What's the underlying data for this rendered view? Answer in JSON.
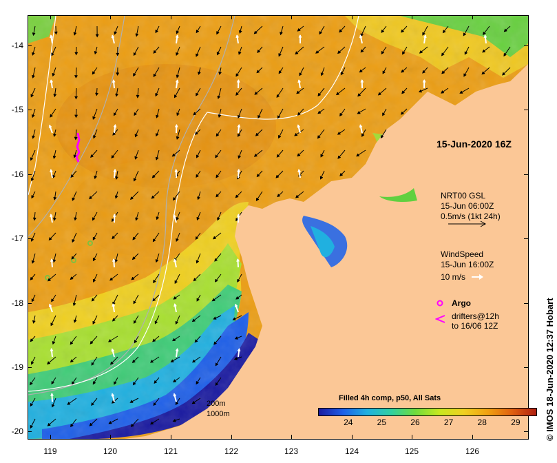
{
  "map": {
    "y_labels": [
      "-14",
      "-15",
      "-16",
      "-17",
      "-18",
      "-19",
      "-20"
    ],
    "x_labels": [
      "119",
      "120",
      "121",
      "122",
      "123",
      "124",
      "125",
      "126"
    ],
    "timestamp": "15-Jun-2020 16Z",
    "credit": "© IMOS 18-Jun-2020 12:37 Hobart"
  },
  "legend": {
    "current": {
      "title": "NRT00 GSL",
      "time": "15-Jun 06:00Z",
      "scale": "0.5m/s (1kt 24h)"
    },
    "wind": {
      "title": "WindSpeed",
      "time": "15-Jun 16:00Z",
      "scale": "10 m/s"
    },
    "argo": {
      "label": "Argo"
    },
    "drifters": {
      "line1": "drifters@12h",
      "line2": "to 16/06 12Z"
    },
    "isobaths": {
      "a": "200m",
      "b": "1000m"
    }
  },
  "colorbar": {
    "title": "Filled 4h comp, p50, All Sats",
    "ticks": [
      "24",
      "25",
      "26",
      "27",
      "28",
      "29"
    ],
    "range": [
      23.1,
      29.6
    ],
    "colors": [
      "#1a1aa0",
      "#1e5fe8",
      "#20b0e0",
      "#30d0a0",
      "#70dc3c",
      "#c8e820",
      "#f0d020",
      "#f0a010",
      "#e06010",
      "#b02010"
    ]
  },
  "styles": {
    "land": "#fbc796",
    "ocean_warm": "#ec9e14",
    "drifter": "#ff00ff",
    "isobath_200": "#b0b0b0",
    "isobath_1000": "#ffffff"
  }
}
